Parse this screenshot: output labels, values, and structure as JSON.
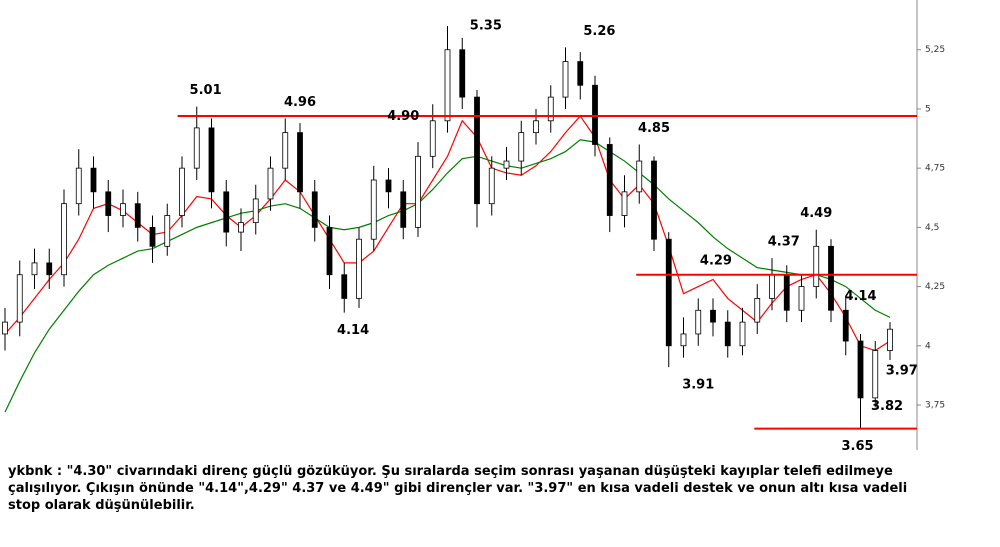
{
  "chart_data": {
    "type": "candlestick",
    "open": [
      4.05,
      4.1,
      4.3,
      4.35,
      4.3,
      4.6,
      4.75,
      4.65,
      4.55,
      4.6,
      4.5,
      4.42,
      4.55,
      4.75,
      4.92,
      4.65,
      4.48,
      4.52,
      4.62,
      4.75,
      4.9,
      4.65,
      4.5,
      4.3,
      4.2,
      4.45,
      4.7,
      4.65,
      4.5,
      4.8,
      4.95,
      5.25,
      5.05,
      4.6,
      4.75,
      4.78,
      4.9,
      4.95,
      5.05,
      5.2,
      5.1,
      4.85,
      4.55,
      4.65,
      4.78,
      4.45,
      4.0,
      4.05,
      4.15,
      4.1,
      4.0,
      4.1,
      4.2,
      4.3,
      4.15,
      4.25,
      4.42,
      4.15,
      4.02,
      3.78,
      3.98
    ],
    "high": [
      4.16,
      4.36,
      4.41,
      4.41,
      4.66,
      4.83,
      4.8,
      4.7,
      4.66,
      4.65,
      4.55,
      4.6,
      4.8,
      5.01,
      4.96,
      4.7,
      4.58,
      4.68,
      4.8,
      4.96,
      4.94,
      4.7,
      4.55,
      4.35,
      4.5,
      4.76,
      4.75,
      4.7,
      4.86,
      5.02,
      5.35,
      5.3,
      5.08,
      4.8,
      4.84,
      4.95,
      5.0,
      5.1,
      5.26,
      5.24,
      5.14,
      4.88,
      4.72,
      4.85,
      4.8,
      4.48,
      4.12,
      4.2,
      4.2,
      4.15,
      4.16,
      4.26,
      4.37,
      4.34,
      4.3,
      4.49,
      4.45,
      4.2,
      4.05,
      4.02,
      4.1
    ],
    "low": [
      3.98,
      4.04,
      4.24,
      4.24,
      4.25,
      4.55,
      4.58,
      4.48,
      4.5,
      4.44,
      4.35,
      4.38,
      4.5,
      4.7,
      4.58,
      4.42,
      4.4,
      4.47,
      4.57,
      4.7,
      4.58,
      4.44,
      4.24,
      4.14,
      4.16,
      4.4,
      4.58,
      4.45,
      4.46,
      4.75,
      4.9,
      5.0,
      4.5,
      4.55,
      4.7,
      4.72,
      4.85,
      4.9,
      5.0,
      5.04,
      4.8,
      4.48,
      4.5,
      4.6,
      4.4,
      3.91,
      3.95,
      4.0,
      4.04,
      3.95,
      3.96,
      4.05,
      4.15,
      4.1,
      4.1,
      4.2,
      4.1,
      3.96,
      3.65,
      3.74,
      3.94
    ],
    "close": [
      4.1,
      4.3,
      4.35,
      4.3,
      4.6,
      4.75,
      4.65,
      4.55,
      4.6,
      4.5,
      4.42,
      4.55,
      4.75,
      4.92,
      4.65,
      4.48,
      4.52,
      4.62,
      4.75,
      4.9,
      4.65,
      4.5,
      4.3,
      4.2,
      4.45,
      4.7,
      4.65,
      4.5,
      4.8,
      4.95,
      5.25,
      5.05,
      4.6,
      4.75,
      4.78,
      4.9,
      4.95,
      5.05,
      5.2,
      5.1,
      4.85,
      4.55,
      4.65,
      4.78,
      4.45,
      4.0,
      4.05,
      4.15,
      4.1,
      4.0,
      4.1,
      4.2,
      4.3,
      4.15,
      4.25,
      4.42,
      4.15,
      4.02,
      3.78,
      3.98,
      4.07
    ],
    "up_color": "#ffffff",
    "down_color": "#000000",
    "wick_color": "#000000",
    "series": [
      {
        "color": "#ff0000",
        "values": [
          4.05,
          4.12,
          4.2,
          4.28,
          4.35,
          4.45,
          4.58,
          4.6,
          4.57,
          4.52,
          4.47,
          4.48,
          4.55,
          4.63,
          4.62,
          4.55,
          4.5,
          4.55,
          4.62,
          4.7,
          4.65,
          4.55,
          4.45,
          4.35,
          4.35,
          4.4,
          4.5,
          4.6,
          4.6,
          4.7,
          4.8,
          4.95,
          4.88,
          4.75,
          4.73,
          4.72,
          4.76,
          4.82,
          4.9,
          4.97,
          4.88,
          4.7,
          4.62,
          4.68,
          4.6,
          4.42,
          4.22,
          4.25,
          4.28,
          4.2,
          4.15,
          4.1,
          4.18,
          4.25,
          4.28,
          4.3,
          4.22,
          4.12,
          4.0,
          3.98,
          4.02
        ]
      },
      {
        "color": "#008000",
        "values": [
          3.72,
          3.85,
          3.97,
          4.07,
          4.15,
          4.23,
          4.3,
          4.34,
          4.37,
          4.4,
          4.41,
          4.44,
          4.47,
          4.5,
          4.52,
          4.54,
          4.56,
          4.57,
          4.59,
          4.6,
          4.58,
          4.54,
          4.5,
          4.49,
          4.5,
          4.52,
          4.55,
          4.57,
          4.6,
          4.66,
          4.73,
          4.79,
          4.8,
          4.78,
          4.76,
          4.75,
          4.77,
          4.79,
          4.82,
          4.87,
          4.86,
          4.82,
          4.78,
          4.73,
          4.68,
          4.62,
          4.57,
          4.52,
          4.46,
          4.41,
          4.37,
          4.33,
          4.32,
          4.31,
          4.3,
          4.3,
          4.28,
          4.25,
          4.2,
          4.15,
          4.12
        ]
      }
    ],
    "levels": [
      {
        "value": 4.97,
        "start": 11.7,
        "color": "#ff0000"
      },
      {
        "value": 4.3,
        "start": 42.8,
        "color": "#ff0000"
      },
      {
        "value": 3.65,
        "start": 50.8,
        "color": "#ff0000"
      }
    ],
    "annotations": [
      {
        "label": "5.01",
        "value": 5.01,
        "index": 13.6,
        "position": "above"
      },
      {
        "label": "4.96",
        "value": 4.96,
        "index": 20,
        "position": "above"
      },
      {
        "label": "4.90",
        "value": 4.9,
        "index": 27,
        "position": "above"
      },
      {
        "label": "5.35",
        "value": 5.35,
        "index": 32.6,
        "position": "on"
      },
      {
        "label": "5.26",
        "value": 5.26,
        "index": 40.3,
        "position": "above"
      },
      {
        "label": "4.85",
        "value": 4.85,
        "index": 44,
        "position": "above"
      },
      {
        "label": "4.14",
        "value": 4.14,
        "index": 23.6,
        "position": "below"
      },
      {
        "label": "3.91",
        "value": 3.91,
        "index": 47,
        "position": "below"
      },
      {
        "label": "4.29",
        "value": 4.29,
        "index": 48.2,
        "position": "above"
      },
      {
        "label": "4.37",
        "value": 4.37,
        "index": 52.8,
        "position": "above"
      },
      {
        "label": "4.49",
        "value": 4.49,
        "index": 55,
        "position": "above"
      },
      {
        "label": "4.14",
        "value": 4.14,
        "index": 58,
        "position": "above"
      },
      {
        "label": "3.97",
        "value": 3.97,
        "index": 60.8,
        "position": "below"
      },
      {
        "label": "3.82",
        "value": 3.82,
        "index": 59.8,
        "position": "below"
      },
      {
        "label": "3.65",
        "value": 3.65,
        "index": 57.8,
        "position": "below"
      }
    ],
    "ylim": [
      3.56,
      5.46
    ],
    "yticks": [
      {
        "value": 3.75,
        "label": "3,75"
      },
      4,
      {
        "value": 4.25,
        "label": "4,25"
      },
      {
        "value": 4.5,
        "label": "4,5"
      },
      {
        "value": 4.75,
        "label": "4,75"
      },
      5,
      {
        "value": 5.25,
        "label": "5,25"
      }
    ],
    "caption": "ykbnk : \"4.30\" civarındaki direnç güçlü gözüküyor. Şu sıralarda seçim sonrası yaşanan düşüşteki kayıplar telefi edilmeye çalışılıyor. Çıkışın önünde \"4.14\",4.29\" 4.37 ve 4.49\" gibi dirençler var. \"3.97\" en kısa vadeli destek ve onun altı kısa vadeli stop olarak düşünülebilir."
  }
}
